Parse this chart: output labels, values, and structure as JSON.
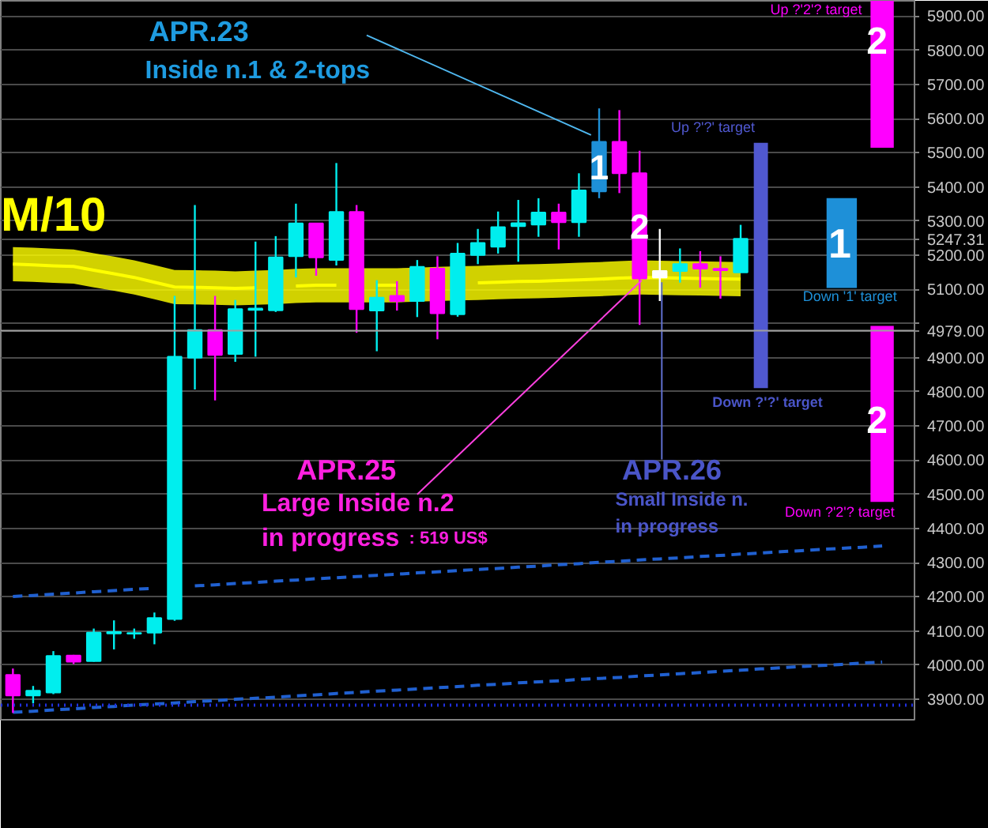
{
  "chart_data": {
    "type": "candlestick",
    "categories": [
      null,
      null,
      null,
      null,
      null,
      null,
      null,
      null,
      null,
      null,
      null,
      null,
      null,
      null,
      null,
      null,
      null,
      null,
      null,
      null,
      null,
      null,
      null,
      null,
      null,
      null,
      null,
      null,
      null,
      null,
      null,
      null,
      null,
      null,
      null,
      null,
      null,
      null,
      null,
      null,
      null,
      null,
      null,
      null
    ],
    "ohlc": [
      [
        3971,
        3990,
        3860,
        3911
      ],
      [
        3911,
        3939,
        3888,
        3925
      ],
      [
        3920,
        4041,
        3915,
        4027
      ],
      [
        4028,
        4030,
        4003,
        4010
      ],
      [
        4012,
        4107,
        4010,
        4095
      ],
      [
        4093,
        4131,
        4046,
        4097
      ],
      [
        4092,
        4107,
        4077,
        4094
      ],
      [
        4095,
        4154,
        4061,
        4138
      ],
      [
        4135,
        5081,
        4130,
        4903
      ],
      [
        4900,
        5347,
        4807,
        4981
      ],
      [
        4981,
        5081,
        4775,
        4908
      ],
      [
        4911,
        5069,
        4888,
        5042
      ],
      [
        5040,
        5240,
        4903,
        5044
      ],
      [
        5039,
        5256,
        5034,
        5194
      ],
      [
        5197,
        5351,
        5135,
        5293
      ],
      [
        5293,
        5293,
        5140,
        5194
      ],
      [
        5186,
        5470,
        5170,
        5327
      ],
      [
        5327,
        5347,
        4973,
        5042
      ],
      [
        5038,
        5127,
        4919,
        5076
      ],
      [
        5081,
        5124,
        5038,
        5066
      ],
      [
        5066,
        5186,
        5019,
        5166
      ],
      [
        5161,
        5197,
        4954,
        5030
      ],
      [
        5027,
        5236,
        5020,
        5205
      ],
      [
        5201,
        5277,
        5174,
        5236
      ],
      [
        5225,
        5328,
        5205,
        5282
      ],
      [
        5285,
        5362,
        5181,
        5294
      ],
      [
        5290,
        5367,
        5254,
        5325
      ],
      [
        5325,
        5351,
        5217,
        5297
      ],
      [
        5297,
        5440,
        5254,
        5390
      ],
      [
        5387,
        5630,
        5367,
        5532
      ],
      [
        5532,
        5625,
        5382,
        5440
      ],
      [
        5440,
        5506,
        4996,
        5132
      ],
      [
        5135,
        5277,
        5066,
        5154
      ],
      [
        5154,
        5220,
        5120,
        5174
      ],
      [
        5174,
        5212,
        5105,
        5161
      ],
      [
        5160,
        5197,
        5073,
        5156
      ],
      [
        5150,
        5289,
        5150,
        5248
      ],
      null,
      null,
      null,
      null,
      null,
      null,
      null
    ],
    "colors": [
      "#ff00ff",
      "#00eeee",
      "#00eeee",
      "#ff00ff",
      "#00eeee",
      "#00eeee",
      "#00eeee",
      "#00eeee",
      "#00eeee",
      "#00eeee",
      "#ff00ff",
      "#00eeee",
      "#00eeee",
      "#00eeee",
      "#00eeee",
      "#ff00ff",
      "#00eeee",
      "#ff00ff",
      "#00eeee",
      "#ff00ff",
      "#00eeee",
      "#ff00ff",
      "#00eeee",
      "#00eeee",
      "#00eeee",
      "#00eeee",
      "#00eeee",
      "#ff00ff",
      "#00eeee",
      "#1e90d8",
      "#ff00ff",
      "#ff00ff",
      "#ffffff",
      "#00eeee",
      "#ff00ff",
      "#ff00ff",
      "#00eeee",
      null,
      null,
      null,
      null,
      null,
      null,
      null
    ],
    "value_labels": [
      null,
      null,
      null,
      null,
      null,
      null,
      null,
      null,
      null,
      null,
      null,
      null,
      null,
      null,
      null,
      null,
      null,
      null,
      null,
      null,
      null,
      null,
      null,
      null,
      null,
      null,
      null,
      null,
      null,
      "1",
      null,
      "2",
      null,
      null,
      null,
      null,
      null,
      null,
      null,
      null,
      null,
      null,
      null,
      null
    ],
    "series": [
      {
        "name": "M/10",
        "type": "line",
        "color": "#ffff00",
        "line_style": "solid",
        "values": [
          5174,
          5172,
          5169,
          5167,
          5156,
          5146,
          5135,
          5121,
          5107,
          5106,
          5105,
          5103,
          5105,
          null,
          5110,
          5112,
          5112,
          null,
          5112,
          5112,
          null,
          null,
          null,
          5119,
          5121,
          5123,
          5124,
          5126,
          5128,
          5130,
          5133,
          5135,
          5134,
          5133,
          5132,
          5131,
          5130,
          null,
          null,
          null,
          null,
          null,
          null,
          null
        ],
        "lower": [
          5124,
          5122,
          5119,
          5117,
          5106,
          5096,
          5085,
          5071,
          5057,
          5056,
          5055,
          5053,
          5055,
          5057,
          5060,
          5062,
          5062,
          5062,
          5062,
          5062,
          5064,
          5066,
          5068,
          5069,
          5071,
          5073,
          5074,
          5076,
          5078,
          5080,
          5083,
          5085,
          5084,
          5083,
          5082,
          5081,
          5080,
          null,
          null,
          null,
          null,
          null,
          null,
          null
        ],
        "upper": [
          5224,
          5222,
          5219,
          5217,
          5206,
          5196,
          5185,
          5171,
          5157,
          5156,
          5155,
          5153,
          5155,
          5157,
          5160,
          5162,
          5162,
          5162,
          5162,
          5162,
          5164,
          5166,
          5168,
          5169,
          5171,
          5173,
          5174,
          5176,
          5178,
          5180,
          5183,
          5185,
          5184,
          5183,
          5182,
          5181,
          5180,
          null,
          null,
          null,
          null,
          null,
          null,
          null
        ]
      },
      {
        "type": "line",
        "color": "#2060d0",
        "line_style": "dashed",
        "values": [
          4201,
          4204,
          4208,
          4211,
          4215,
          4218,
          4222,
          4225,
          null,
          4232,
          4235,
          4239,
          4242,
          4246,
          4249,
          4253,
          4256,
          4259,
          4263,
          4266,
          4270,
          4273,
          4277,
          4280,
          4283,
          4287,
          4290,
          4294,
          4297,
          4301,
          4304,
          4308,
          4311,
          4314,
          4318,
          4321,
          4325,
          4328,
          4332,
          4335,
          4339,
          4342,
          4345,
          4349
        ]
      },
      {
        "type": "line",
        "color": "#2060d0",
        "line_style": "dashed",
        "values": [
          3862,
          3865,
          3869,
          3872,
          3876,
          3879,
          3883,
          3886,
          3889,
          3893,
          3896,
          3900,
          3903,
          3906,
          3910,
          3913,
          3917,
          3920,
          3924,
          3927,
          3930,
          3934,
          3937,
          3941,
          3944,
          3948,
          3951,
          3954,
          3958,
          3961,
          3964,
          3968,
          3971,
          3975,
          3978,
          3982,
          3985,
          3989,
          3992,
          3996,
          3999,
          4002,
          4006,
          4009
        ]
      },
      {
        "name": "Up ?'2'? target",
        "type": "bar",
        "color": "#ff00ff",
        "values": [
          null,
          null,
          null,
          null,
          null,
          null,
          null,
          null,
          null,
          null,
          null,
          null,
          null,
          null,
          null,
          null,
          null,
          null,
          null,
          null,
          null,
          null,
          null,
          null,
          null,
          null,
          null,
          null,
          null,
          null,
          null,
          null,
          null,
          null,
          null,
          null,
          null,
          null,
          null,
          null,
          null,
          null,
          null,
          430
        ],
        "base": [
          null,
          null,
          null,
          null,
          null,
          null,
          null,
          null,
          null,
          null,
          null,
          null,
          null,
          null,
          null,
          null,
          null,
          null,
          null,
          null,
          null,
          null,
          null,
          null,
          null,
          null,
          null,
          null,
          null,
          null,
          null,
          null,
          null,
          null,
          null,
          null,
          null,
          null,
          null,
          null,
          null,
          null,
          null,
          5515
        ]
      },
      {
        "name": "Down '1' target",
        "type": "bar",
        "color": "#1e90d8",
        "values": [
          null,
          null,
          null,
          null,
          null,
          null,
          null,
          null,
          null,
          null,
          null,
          null,
          null,
          null,
          null,
          null,
          null,
          null,
          null,
          null,
          null,
          null,
          null,
          null,
          null,
          null,
          null,
          null,
          null,
          null,
          null,
          null,
          null,
          null,
          null,
          null,
          null,
          null,
          null,
          null,
          null,
          263,
          null,
          null
        ],
        "base": [
          null,
          null,
          null,
          null,
          null,
          null,
          null,
          null,
          null,
          null,
          null,
          null,
          null,
          null,
          null,
          null,
          null,
          null,
          null,
          null,
          null,
          null,
          null,
          null,
          null,
          null,
          null,
          null,
          null,
          null,
          null,
          null,
          null,
          null,
          null,
          null,
          null,
          null,
          null,
          null,
          null,
          5104,
          null,
          null
        ]
      },
      {
        "name": "Down ?'2'? target",
        "type": "bar",
        "color": "#ff00ff",
        "values": [
          null,
          null,
          null,
          null,
          null,
          null,
          null,
          null,
          null,
          null,
          null,
          null,
          null,
          null,
          null,
          null,
          null,
          null,
          null,
          null,
          null,
          null,
          null,
          null,
          null,
          null,
          null,
          null,
          null,
          null,
          null,
          null,
          null,
          null,
          null,
          null,
          null,
          null,
          null,
          null,
          null,
          null,
          null,
          515
        ],
        "base": [
          null,
          null,
          null,
          null,
          null,
          null,
          null,
          null,
          null,
          null,
          null,
          null,
          null,
          null,
          null,
          null,
          null,
          null,
          null,
          null,
          null,
          null,
          null,
          null,
          null,
          null,
          null,
          null,
          null,
          null,
          null,
          null,
          null,
          null,
          null,
          null,
          null,
          null,
          null,
          null,
          null,
          null,
          null,
          4478
        ]
      },
      {
        "name": "Up ?'?' target",
        "type": "bar",
        "color": "#5058d0",
        "values": [
          null,
          null,
          null,
          null,
          null,
          null,
          null,
          null,
          null,
          null,
          null,
          null,
          null,
          null,
          null,
          null,
          null,
          null,
          null,
          null,
          null,
          null,
          null,
          null,
          null,
          null,
          null,
          null,
          null,
          null,
          null,
          null,
          null,
          null,
          null,
          null,
          null,
          718,
          null,
          null,
          null,
          null,
          null,
          null
        ],
        "base": [
          null,
          null,
          null,
          null,
          null,
          null,
          null,
          null,
          null,
          null,
          null,
          null,
          null,
          null,
          null,
          null,
          null,
          null,
          null,
          null,
          null,
          null,
          null,
          null,
          null,
          null,
          null,
          null,
          null,
          null,
          null,
          null,
          null,
          null,
          null,
          null,
          null,
          4811,
          null,
          null,
          null,
          null,
          null,
          null
        ]
      }
    ],
    "ylim": [
      3840,
      5945
    ],
    "yticks": [
      {
        "value": 3900,
        "label": "3900.00"
      },
      {
        "value": 4000,
        "label": "4000.00"
      },
      {
        "value": 4100,
        "label": "4100.00"
      },
      {
        "value": 4200,
        "label": "4200.00"
      },
      {
        "value": 4300,
        "label": "4300.00"
      },
      {
        "value": 4400,
        "label": "4400.00"
      },
      {
        "value": 4500,
        "label": "4500.00"
      },
      {
        "value": 4600,
        "label": "4600.00"
      },
      {
        "value": 4700,
        "label": "4700.00"
      },
      {
        "value": 4800,
        "label": "4800.00"
      },
      {
        "value": 4900,
        "label": "4900.00"
      },
      {
        "value": 4979,
        "label": "4979.00"
      },
      {
        "value": 5000,
        "label": null
      },
      {
        "value": 5100,
        "label": "5100.00"
      },
      {
        "value": 5200,
        "label": "5200.00"
      },
      {
        "value": 5247.31,
        "label": "5247.31"
      },
      {
        "value": 5300,
        "label": "5300.00"
      },
      {
        "value": 5400,
        "label": "5400.00"
      },
      {
        "value": 5500,
        "label": "5500.00"
      },
      {
        "value": 5600,
        "label": "5600.00"
      },
      {
        "value": 5700,
        "label": "5700.00"
      },
      {
        "value": 5800,
        "label": "5800.00"
      },
      {
        "value": 5900,
        "label": "5900.00"
      }
    ],
    "ref_lines": [
      {
        "axis": "y",
        "value": 4979,
        "color": "#a0a0a0",
        "line_style": "solid"
      },
      {
        "axis": "y",
        "value": 3883,
        "color": "#2030e0",
        "line_style": "dotted"
      }
    ],
    "annotations": [
      "APR.23",
      "Inside n.1 & 2-tops",
      "APR.25",
      "Large Inside n.2",
      "in progress",
      ": 519 US$",
      "APR.26",
      "Small Inside n.",
      "in progress",
      "Down ?'?' target",
      "2",
      "1",
      "2"
    ],
    "grid": "y",
    "tick_labels": "y"
  }
}
